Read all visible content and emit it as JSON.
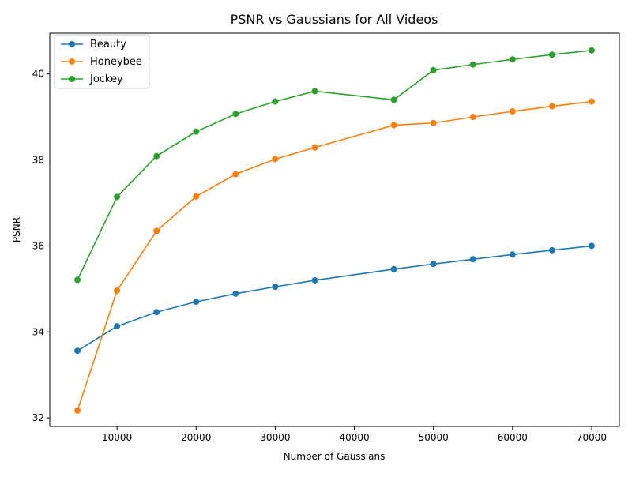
{
  "chart_data": {
    "type": "line",
    "title": "PSNR vs Gaussians for All Videos",
    "xlabel": "Number of Gaussians",
    "ylabel": "PSNR",
    "xlim": [
      1500,
      73500
    ],
    "ylim": [
      31.8,
      40.95
    ],
    "x_ticks": [
      10000,
      20000,
      30000,
      40000,
      50000,
      60000,
      70000
    ],
    "y_ticks": [
      32,
      34,
      36,
      38,
      40
    ],
    "grid": false,
    "legend_position": "top-left",
    "x": [
      5000,
      10000,
      15000,
      20000,
      25000,
      30000,
      35000,
      45000,
      50000,
      55000,
      60000,
      65000,
      70000
    ],
    "series": [
      {
        "name": "Beauty",
        "color": "#1f77b4",
        "marker": "circle",
        "values": [
          33.56,
          34.13,
          34.46,
          34.7,
          34.89,
          35.05,
          35.2,
          35.46,
          35.58,
          35.69,
          35.8,
          35.9,
          36.0
        ]
      },
      {
        "name": "Honeybee",
        "color": "#ff7f0e",
        "marker": "circle",
        "values": [
          32.17,
          34.96,
          36.35,
          37.15,
          37.67,
          38.02,
          38.29,
          38.81,
          38.86,
          39.0,
          39.13,
          39.25,
          39.36
        ]
      },
      {
        "name": "Jockey",
        "color": "#2ca02c",
        "marker": "circle",
        "values": [
          35.21,
          37.14,
          38.09,
          38.66,
          39.07,
          39.36,
          39.6,
          39.4,
          40.09,
          40.22,
          40.34,
          40.45,
          40.55
        ]
      }
    ]
  }
}
